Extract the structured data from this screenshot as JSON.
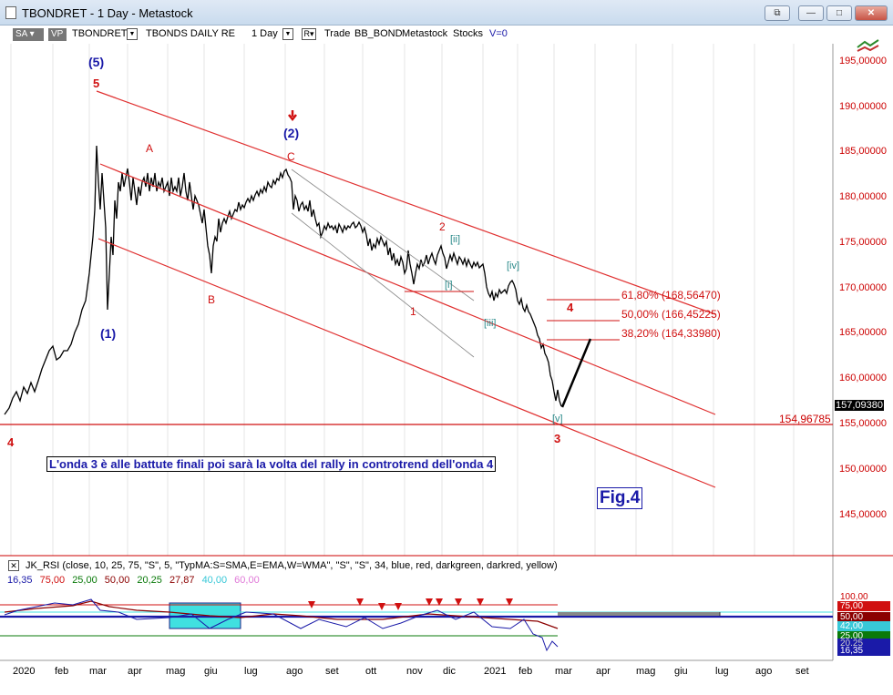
{
  "window": {
    "title": "TBONDRET - 1 Day - Metastock",
    "buttons": {
      "restore": "⧉",
      "minimize": "—",
      "maximize": "□",
      "close": "✕"
    }
  },
  "toolbar": {
    "sa": "SA",
    "vp": "VP",
    "symbol": "TBONDRET",
    "security_name": "TBONDS DAILY RE",
    "period": "1 Day",
    "r_button": "R",
    "trade": "Trade",
    "account": "BB_BOND",
    "source": "Metastock",
    "type": "Stocks",
    "volume": "V=0"
  },
  "price_axis": [
    "195,00000",
    "190,00000",
    "185,00000",
    "180,00000",
    "175,00000",
    "170,00000",
    "165,00000",
    "160,00000",
    "155,00000",
    "150,00000",
    "145,00000"
  ],
  "last_price": "157,09380",
  "support_level": "154,96785",
  "time_axis": [
    "2020",
    "feb",
    "mar",
    "apr",
    "mag",
    "giu",
    "lug",
    "ago",
    "set",
    "ott",
    "nov",
    "dic",
    "2021",
    "feb",
    "mar",
    "apr",
    "mag",
    "giu",
    "lug",
    "ago",
    "set"
  ],
  "waves": {
    "blue": [
      "(5)",
      "(2)",
      "(1)"
    ],
    "red_main": [
      "5",
      "4",
      "3",
      "4"
    ],
    "abc": [
      "A",
      "B",
      "C"
    ],
    "minor": [
      "1",
      "2"
    ],
    "teal": [
      "[i]",
      "[ii]",
      "[iii]",
      "[iv]",
      "[v]"
    ]
  },
  "fib_levels": [
    {
      "label": "61,80% (168,56470)",
      "level": 168.5647
    },
    {
      "label": "50,00% (166,45225)",
      "level": 166.45225
    },
    {
      "label": "38,20% (164,33980)",
      "level": 164.3398
    }
  ],
  "annotation": "L'onda 3 è alle battute finali poi sarà la volta del rally in controtrend dell'onda 4",
  "figure_label": "Fig.4",
  "indicator": {
    "close_icon": "✕",
    "label": "JK_RSI   (close,  10,  25,  75,  \"S\",  5,  \"TypMA:S=SMA,E=EMA,W=WMA\",  \"S\",  \"S\",  34,  blue,  red,  darkgreen,  darkred,  yellow)",
    "values": [
      {
        "text": "16,35",
        "color": "#1a1aa8"
      },
      {
        "text": "75,00",
        "color": "#d01010"
      },
      {
        "text": "25,00",
        "color": "#0a7a0a"
      },
      {
        "text": "50,00",
        "color": "#8b0000"
      },
      {
        "text": "20,25",
        "color": "#0a7a0a"
      },
      {
        "text": "27,87",
        "color": "#8b0000"
      },
      {
        "text": "40,00",
        "color": "#38c8d8"
      },
      {
        "text": "60,00",
        "color": "#e07ad8"
      }
    ],
    "axis": [
      "100,00",
      "75,00",
      "50,00",
      "42,00",
      "25,00",
      "20,25",
      "16,35"
    ]
  },
  "colors": {
    "channel": "#e03030",
    "bars": "#000000",
    "axis_text": "#c00000",
    "wave_blue": "#1a1aa8",
    "wave_red": "#d01010"
  }
}
